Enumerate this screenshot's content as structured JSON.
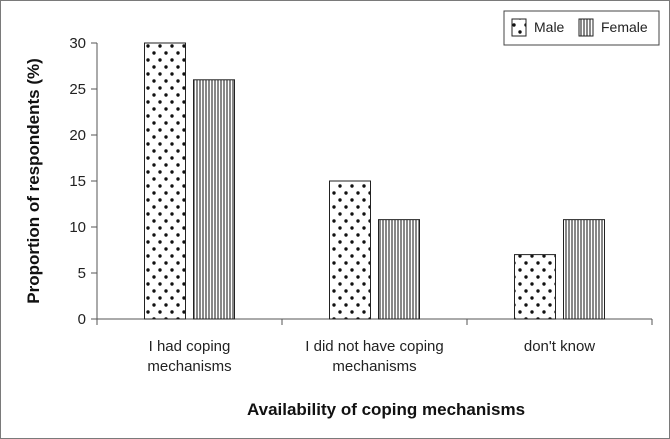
{
  "chart_data": {
    "type": "bar",
    "categories": [
      [
        "I had coping",
        "mechanisms"
      ],
      [
        "I did not have coping",
        "mechanisms"
      ],
      [
        "don't know"
      ]
    ],
    "series": [
      {
        "name": "Male",
        "values": [
          30,
          15,
          7
        ],
        "pattern": "dots"
      },
      {
        "name": "Female",
        "values": [
          26,
          10.8,
          10.8
        ],
        "pattern": "vertical-lines"
      }
    ],
    "title": "",
    "xlabel": "Availability of coping mechanisms",
    "ylabel": "Proportion of respondents (%)",
    "ylim": [
      0,
      30
    ],
    "yticks": [
      "0",
      "5",
      "10",
      "15",
      "20",
      "25",
      "30"
    ],
    "grid": false,
    "legend_position": "top-right",
    "colors": {
      "bar_fill": "#ffffff",
      "bar_stroke": "#222222",
      "axis": "#555555"
    }
  }
}
